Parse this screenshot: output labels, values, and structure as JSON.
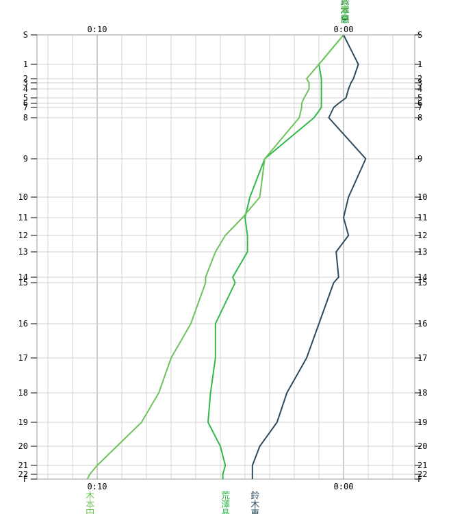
{
  "chart_data": {
    "type": "line",
    "orientation": "vertical",
    "title": "",
    "xlabel": "",
    "ylabel": "",
    "x_ticks_top": [
      "0:10",
      "0:00"
    ],
    "x_ticks_bottom": [
      "0:10",
      "0:00"
    ],
    "y_ticks": [
      "S",
      "1",
      "2",
      "3",
      "4",
      "5",
      "6",
      "7",
      "8",
      "9",
      "10",
      "11",
      "12",
      "13",
      "14",
      "15",
      "16",
      "17",
      "18",
      "19",
      "20",
      "21",
      "22",
      "F"
    ],
    "grid": true,
    "series": [
      {
        "name": "鈴木恵",
        "color": "#2b4a5e",
        "values": [
          0.0,
          -0.6,
          -0.4,
          -0.3,
          -0.2,
          -0.1,
          0.2,
          0.4,
          0.6,
          -0.9,
          -0.2,
          0.0,
          -0.2,
          0.3,
          0.2,
          0.4,
          1.0,
          1.5,
          2.3,
          2.7,
          3.4,
          3.7,
          3.7,
          3.7
        ]
      },
      {
        "name": "荒澤晶",
        "color": "#2eb84a",
        "values": [
          0.0,
          1.0,
          0.9,
          0.9,
          0.9,
          0.9,
          0.9,
          0.9,
          1.2,
          3.2,
          3.8,
          4.0,
          3.9,
          3.9,
          4.5,
          4.4,
          5.2,
          5.2,
          5.4,
          5.5,
          5.0,
          4.8,
          4.9,
          4.9
        ]
      },
      {
        "name": "木本円",
        "color": "#6cc35a",
        "values": [
          0.0,
          1.0,
          1.5,
          1.4,
          1.4,
          1.6,
          1.7,
          1.7,
          1.8,
          3.2,
          3.4,
          4.1,
          4.8,
          5.2,
          5.6,
          5.6,
          6.2,
          7.0,
          7.5,
          8.2,
          9.2,
          10.0,
          10.3,
          10.4
        ]
      }
    ]
  }
}
